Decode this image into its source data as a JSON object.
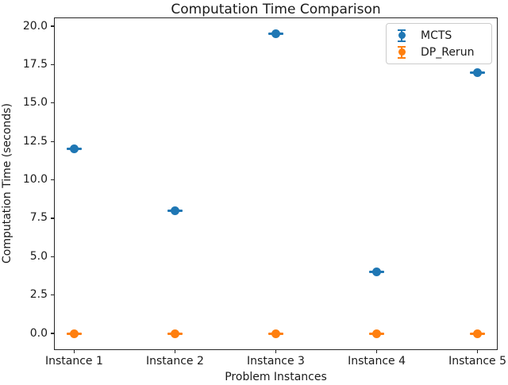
{
  "chart_data": {
    "type": "scatter",
    "variant": "errorbar-points",
    "title": "Computation Time Comparison",
    "xlabel": "Problem Instances",
    "ylabel": "Computation Time (seconds)",
    "categories": [
      "Instance 1",
      "Instance 2",
      "Instance 3",
      "Instance 4",
      "Instance 5"
    ],
    "series": [
      {
        "name": "MCTS",
        "color": "#1f77b4",
        "values": [
          12.0,
          8.0,
          19.5,
          4.0,
          17.0
        ],
        "yerr": [
          0.1,
          0.1,
          0.1,
          0.1,
          0.1
        ]
      },
      {
        "name": "DP_Rerun",
        "color": "#ff7f0e",
        "values": [
          0.0,
          0.0,
          0.0,
          0.0,
          0.0
        ],
        "yerr": [
          0.1,
          0.1,
          0.1,
          0.1,
          0.1
        ]
      }
    ],
    "y_ticks": {
      "values": [
        0.0,
        2.5,
        5.0,
        7.5,
        10.0,
        12.5,
        15.0,
        17.5,
        20.0
      ],
      "labels": [
        "0.0",
        "2.5",
        "5.0",
        "7.5",
        "10.0",
        "12.5",
        "15.0",
        "17.5",
        "20.0"
      ]
    },
    "ylim": [
      -1.08,
      20.57
    ],
    "xlim": [
      -0.2,
      4.2
    ],
    "grid": false,
    "legend": {
      "position": "upper right",
      "entries": [
        "MCTS",
        "DP_Rerun"
      ]
    },
    "axes_color": "#262626",
    "background": "#ffffff"
  }
}
